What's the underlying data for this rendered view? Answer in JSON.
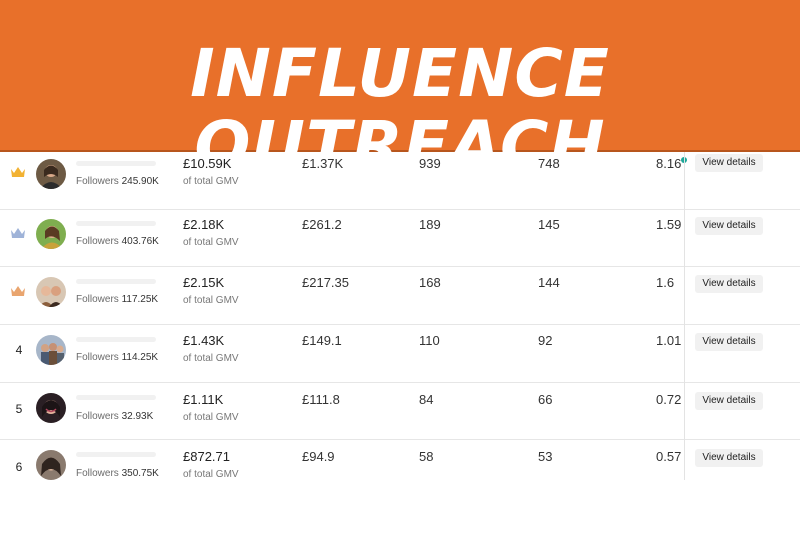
{
  "banner": {
    "title": "INFLUENCE  OUTREACH"
  },
  "colors": {
    "banner": "#e8702a",
    "row_divider": "#e6e6e6",
    "status_dot": "#1ea89a"
  },
  "table": {
    "rows": [
      {
        "rank": "",
        "badge": "gold-crown-icon",
        "followers_label": "Followers",
        "followers": "245.90K",
        "gmv": "£10.59K",
        "gmv_note": "of total GMV",
        "value1": "£1.37K",
        "value2": "939",
        "value3": "748",
        "value4": "8.16",
        "action": "View details"
      },
      {
        "rank": "",
        "badge": "silver-crown-icon",
        "followers_label": "Followers",
        "followers": "403.76K",
        "gmv": "£2.18K",
        "gmv_note": "of total GMV",
        "value1": "£261.2",
        "value2": "189",
        "value3": "145",
        "value4": "1.59",
        "action": "View details"
      },
      {
        "rank": "",
        "badge": "bronze-crown-icon",
        "followers_label": "Followers",
        "followers": "117.25K",
        "gmv": "£2.15K",
        "gmv_note": "of total GMV",
        "value1": "£217.35",
        "value2": "168",
        "value3": "144",
        "value4": "1.6",
        "action": "View details"
      },
      {
        "rank": "4",
        "badge": "",
        "followers_label": "Followers",
        "followers": "114.25K",
        "gmv": "£1.43K",
        "gmv_note": "of total GMV",
        "value1": "£149.1",
        "value2": "110",
        "value3": "92",
        "value4": "1.01",
        "action": "View details"
      },
      {
        "rank": "5",
        "badge": "",
        "followers_label": "Followers",
        "followers": "32.93K",
        "gmv": "£1.11K",
        "gmv_note": "of total GMV",
        "value1": "£111.8",
        "value2": "84",
        "value3": "66",
        "value4": "0.72",
        "action": "View details"
      },
      {
        "rank": "6",
        "badge": "",
        "followers_label": "Followers",
        "followers": "350.75K",
        "gmv": "£872.71",
        "gmv_note": "of total GMV",
        "value1": "£94.9",
        "value2": "58",
        "value3": "53",
        "value4": "0.57",
        "action": "View details"
      }
    ]
  }
}
